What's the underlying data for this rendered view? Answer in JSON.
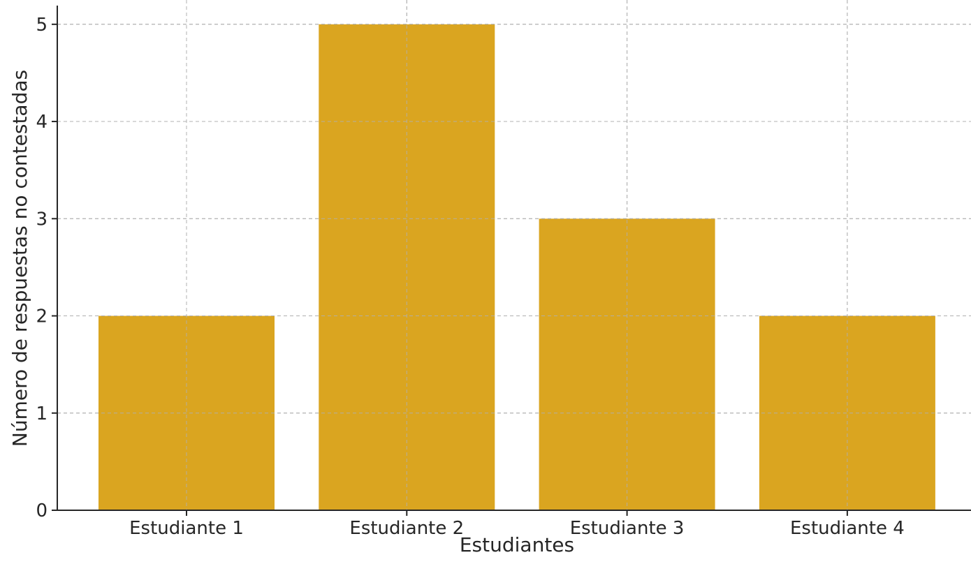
{
  "chart_data": {
    "type": "bar",
    "title": "",
    "xlabel": "Estudiantes",
    "ylabel": "Número de respuestas no contestadas",
    "categories": [
      "Estudiante 1",
      "Estudiante 2",
      "Estudiante 3",
      "Estudiante 4"
    ],
    "values": [
      2,
      5,
      3,
      2
    ],
    "ylim": [
      0,
      5.25
    ],
    "yticks": [
      0,
      1,
      2,
      3,
      4,
      5
    ],
    "grid": true,
    "legend": "none",
    "bar_color": "#DAA520",
    "axis_color": "#262626",
    "grid_color": "#b0b0b0"
  }
}
